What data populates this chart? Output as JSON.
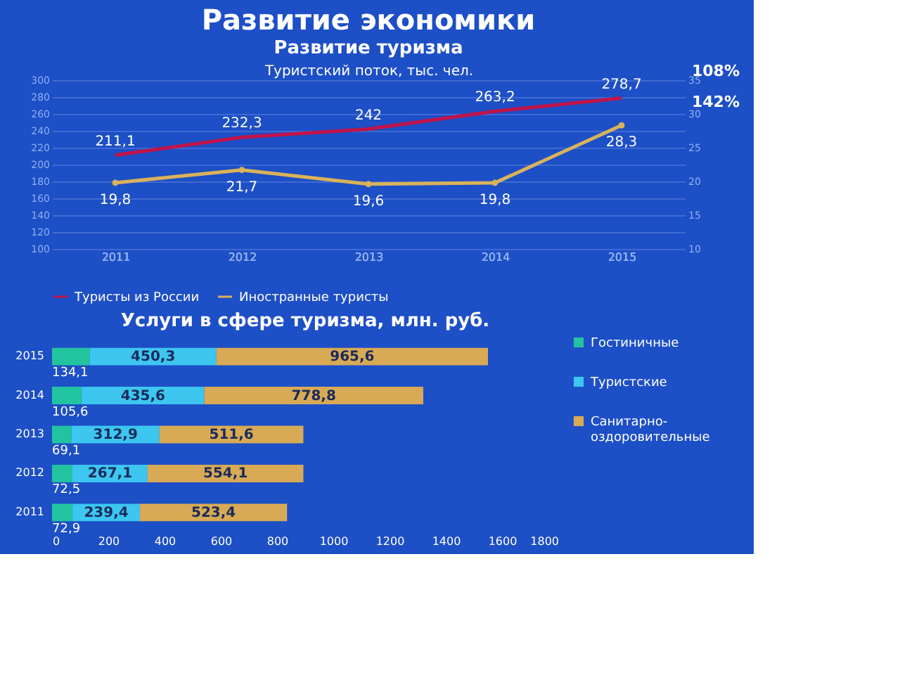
{
  "chart_data": [
    {
      "type": "line",
      "title": "Развитие экономики",
      "subtitle": "Развитие туризма",
      "xlabel": "Туристский поток, тыс. чел.",
      "categories": [
        "2011",
        "2012",
        "2013",
        "2014",
        "2015"
      ],
      "series": [
        {
          "name": "Туристы из России",
          "color": "#c0144a",
          "values": [
            211.1,
            232.3,
            242,
            263.2,
            278.7
          ],
          "value_labels": [
            "211,1",
            "232,3",
            "242",
            "263,2",
            "278,7"
          ],
          "marker": "none"
        },
        {
          "name": "Иностранные туристы",
          "color": "#d9b25a",
          "values": [
            19.8,
            21.7,
            19.6,
            19.8,
            28.3
          ],
          "value_labels": [
            "19,8",
            "21,7",
            "19,6",
            "19,8",
            "28,3"
          ],
          "axis": "y2",
          "marker": "circle"
        }
      ],
      "ylim": [
        100,
        300
      ],
      "yticks": [
        100,
        120,
        140,
        160,
        180,
        200,
        220,
        240,
        260,
        280,
        300
      ],
      "y2lim": [
        10,
        35
      ],
      "y2ticks": [
        10,
        15,
        20,
        25,
        30,
        35
      ],
      "grid": "y",
      "legend": "bottom",
      "annotations": [
        "108%",
        "142%"
      ]
    },
    {
      "type": "bar",
      "title": "Услуги в сфере туризма, млн. руб.",
      "orientation": "horizontal",
      "stacked": true,
      "categories": [
        "2015",
        "2014",
        "2013",
        "2012",
        "2011"
      ],
      "series": [
        {
          "name": "Гостиничные",
          "color": "#22c4a0",
          "values": [
            134.1,
            105.6,
            69.1,
            72.5,
            72.9
          ],
          "value_labels": [
            "134,1",
            "105,6",
            "69,1",
            "72,5",
            "72,9"
          ]
        },
        {
          "name": "Туристские",
          "color": "#3cc6f0",
          "values": [
            450.3,
            435.6,
            312.9,
            267.1,
            239.4
          ],
          "value_labels": [
            "450,3",
            "435,6",
            "312,9",
            "267,1",
            "239,4"
          ]
        },
        {
          "name": "Санитарно-оздоровительные",
          "color": "#d8aa55",
          "values": [
            965.6,
            778.8,
            511.6,
            554.1,
            523.4
          ],
          "value_labels": [
            "965,6",
            "778,8",
            "511,6",
            "554,1",
            "523,4"
          ]
        }
      ],
      "xlim": [
        0,
        1800
      ],
      "xticks": [
        0,
        200,
        400,
        600,
        800,
        1000,
        1200,
        1400,
        1600,
        1800
      ],
      "legend": "right"
    }
  ]
}
